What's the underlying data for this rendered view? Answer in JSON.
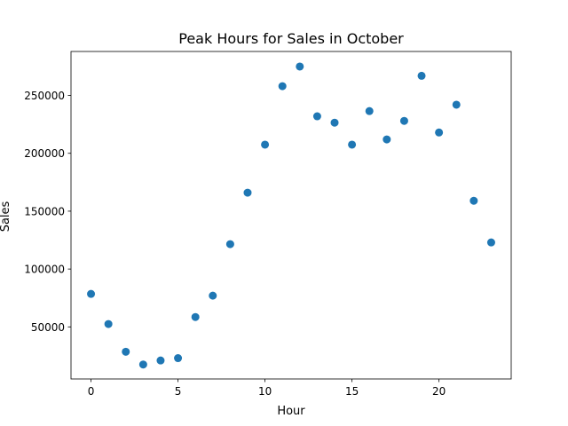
{
  "chart_data": {
    "type": "scatter",
    "title": "Peak Hours for Sales in October",
    "xlabel": "Hour",
    "ylabel": "Sales",
    "xlim": [
      -1.15,
      24.15
    ],
    "ylim": [
      5000,
      288000
    ],
    "xticks": [
      0,
      5,
      10,
      15,
      20
    ],
    "yticks": [
      50000,
      100000,
      150000,
      200000,
      250000
    ],
    "grid": false,
    "marker_color": "#1f77b4",
    "series": [
      {
        "x": [
          0,
          1,
          2,
          3,
          4,
          5,
          6,
          7,
          8,
          9,
          10,
          11,
          12,
          13,
          14,
          15,
          16,
          17,
          18,
          19,
          20,
          21,
          22,
          23
        ],
        "y": [
          78500,
          52500,
          28500,
          17500,
          21000,
          23000,
          58500,
          77000,
          121500,
          166000,
          207500,
          258000,
          275000,
          232000,
          226500,
          207500,
          236500,
          212000,
          228000,
          267000,
          218000,
          242000,
          159000,
          123000
        ]
      }
    ]
  }
}
